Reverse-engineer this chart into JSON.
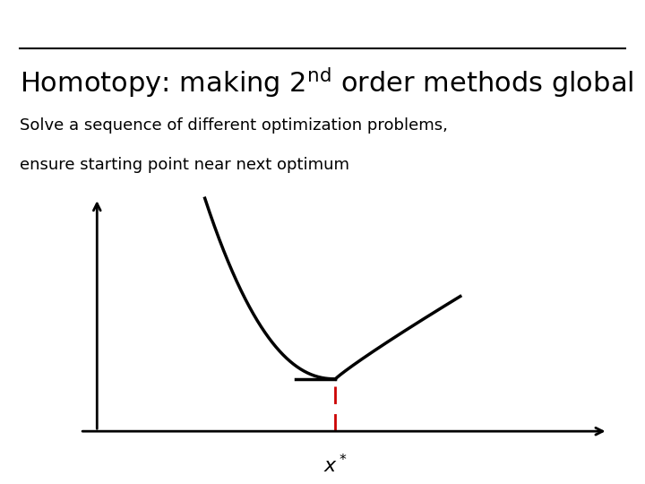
{
  "title_text": "Homotopy: making 2$^{\\mathregular{nd}}$ order methods global",
  "subtitle_line1": "Solve a sequence of different optimization problems,",
  "subtitle_line2": "ensure starting point near next optimum",
  "bg_color": "#ffffff",
  "curve_color": "#000000",
  "dashed_color": "#cc0000",
  "axis_color": "#000000",
  "title_fontsize": 22,
  "subtitle_fontsize": 13,
  "separator_color": "#000000",
  "xstar_label": "$x^*$",
  "fig_width": 7.2,
  "fig_height": 5.4,
  "dpi": 100
}
